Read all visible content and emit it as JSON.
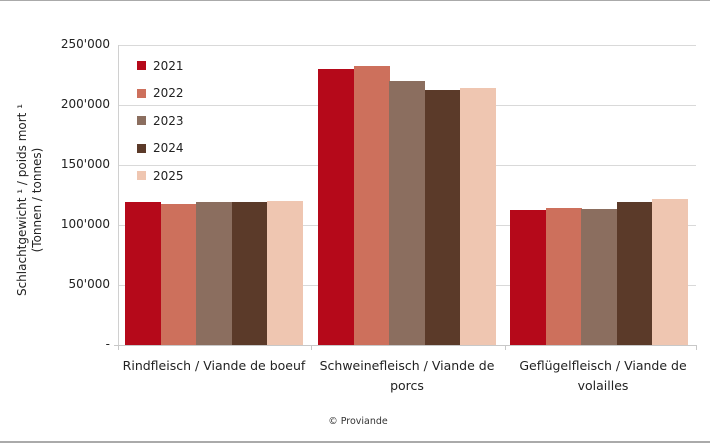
{
  "chart_data": {
    "type": "bar",
    "title": "",
    "xlabel": "",
    "ylabel": "Schlachtgewicht ¹ / poids mort ¹ (Tonnen / tonnes)",
    "ylabel_line1": "Schlachtgewicht ¹ / poids mort ¹",
    "ylabel_line2": "(Tonnen / tonnes)",
    "ylim": [
      0,
      250000
    ],
    "yticks": [
      "-",
      "50'000",
      "100'000",
      "150'000",
      "200'000",
      "250'000"
    ],
    "grid": true,
    "legend_position": "top-left inside",
    "categories": [
      "Rindfleisch / Viande de boeuf",
      "Schweinefleisch / Viande de porcs",
      "Geflügelfleisch / Viande de volailles"
    ],
    "series": [
      {
        "name": "2021",
        "color": "#b5091a",
        "values": [
          119000,
          230000,
          112500
        ]
      },
      {
        "name": "2022",
        "color": "#cd705c",
        "values": [
          117500,
          232500,
          114000
        ]
      },
      {
        "name": "2023",
        "color": "#8b6e5f",
        "values": [
          119000,
          220000,
          113500
        ]
      },
      {
        "name": "2024",
        "color": "#5b3a29",
        "values": [
          119500,
          212500,
          119000
        ]
      },
      {
        "name": "2025",
        "color": "#efc6b1",
        "values": [
          120000,
          214000,
          121500
        ]
      }
    ],
    "credit": "© Proviande"
  }
}
